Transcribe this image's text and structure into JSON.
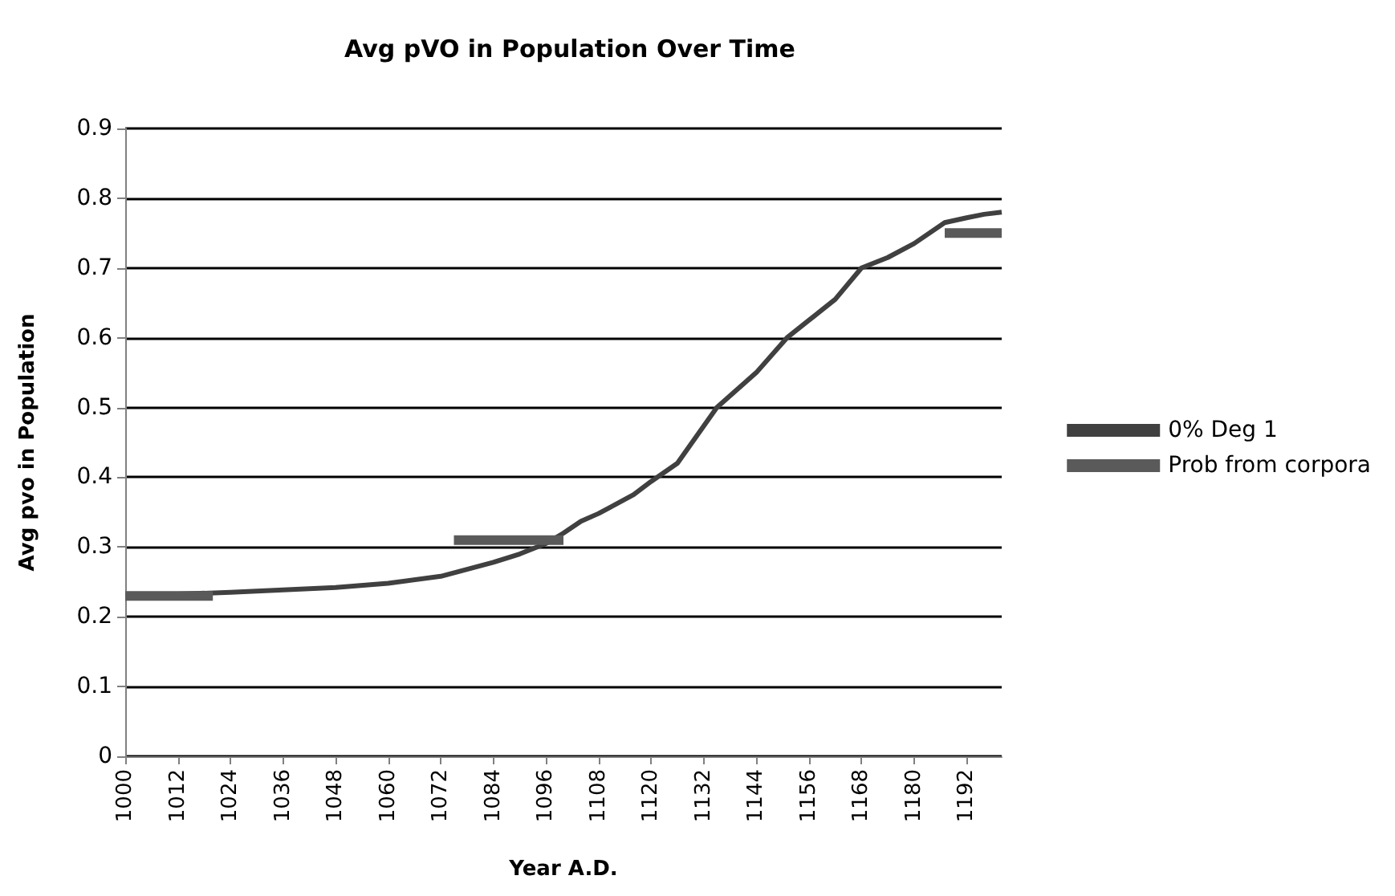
{
  "chart_data": {
    "type": "line",
    "title": "Avg pVO in Population Over Time",
    "xlabel": "Year A.D.",
    "ylabel": "Avg pvo in Population",
    "xlim": [
      1000,
      1200
    ],
    "xticks": [
      1000,
      1012,
      1024,
      1036,
      1048,
      1060,
      1072,
      1084,
      1096,
      1108,
      1120,
      1132,
      1144,
      1156,
      1168,
      1180,
      1192
    ],
    "ylim": [
      0,
      0.9
    ],
    "yticks": [
      0,
      0.1,
      0.2,
      0.3,
      0.4,
      0.5,
      0.6,
      0.7,
      0.8,
      0.9
    ],
    "grid": "y",
    "legend": "right",
    "marker": "none",
    "series": [
      {
        "name": "0% Deg 1",
        "color": "#404040",
        "line_style": "solid",
        "x": [
          1000,
          1024,
          1048,
          1060,
          1072,
          1084,
          1090,
          1096,
          1100,
          1104,
          1108,
          1116,
          1120,
          1126,
          1135,
          1144,
          1151,
          1156,
          1162,
          1168,
          1174,
          1180,
          1187,
          1192,
          1196,
          1200
        ],
        "values": [
          0.23,
          0.235,
          0.242,
          0.248,
          0.258,
          0.278,
          0.29,
          0.305,
          0.32,
          0.337,
          0.348,
          0.375,
          0.394,
          0.42,
          0.5,
          0.55,
          0.6,
          0.625,
          0.655,
          0.7,
          0.715,
          0.735,
          0.765,
          0.772,
          0.777,
          0.78
        ]
      },
      {
        "name": "Prob from corpora",
        "color": "#5a5a5a",
        "line_style": "solid",
        "x": [
          1000,
          1020,
          1021,
          1075,
          1100,
          1101,
          1187,
          1200
        ],
        "values": [
          0.23,
          0.23,
          null,
          0.31,
          0.31,
          null,
          0.75,
          0.75
        ]
      }
    ]
  }
}
